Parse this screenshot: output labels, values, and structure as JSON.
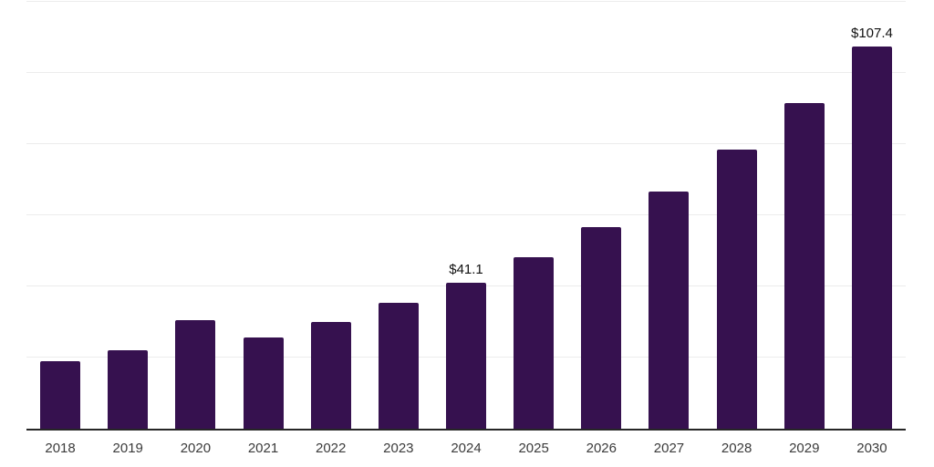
{
  "chart_data": {
    "type": "bar",
    "title": "",
    "xlabel": "",
    "ylabel": "",
    "categories": [
      "2018",
      "2019",
      "2020",
      "2021",
      "2022",
      "2023",
      "2024",
      "2025",
      "2026",
      "2027",
      "2028",
      "2029",
      "2030"
    ],
    "values": [
      19.0,
      22.0,
      30.5,
      25.6,
      30.0,
      35.4,
      41.1,
      48.2,
      56.7,
      66.6,
      78.4,
      91.5,
      107.4
    ],
    "data_labels": [
      "",
      "",
      "",
      "",
      "",
      "",
      "$41.1",
      "",
      "",
      "",
      "",
      "",
      "$107.4"
    ],
    "ylim": [
      0,
      120
    ],
    "gridline_step": 20,
    "grid": true,
    "legend_position": "none",
    "colors": {
      "bar": "#36114f",
      "axis_line": "#262626",
      "gridline": "#ececec",
      "tick_label": "#3b3b3b",
      "data_label": "#111111",
      "background": "#ffffff"
    }
  }
}
